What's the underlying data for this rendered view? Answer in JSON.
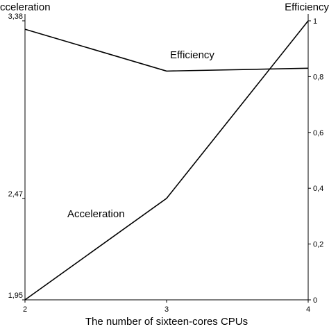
{
  "chart_data": {
    "type": "line",
    "x_axis": {
      "label": "The number of sixteen-cores CPUs",
      "ticks": [
        2,
        3,
        4
      ],
      "range": [
        2,
        4
      ]
    },
    "y_left": {
      "label": "cceleration",
      "ticks": [
        "1,95",
        "2,47",
        "3,38"
      ],
      "range": [
        1.95,
        3.38
      ]
    },
    "y_right": {
      "label": "Efficiency",
      "ticks": [
        "0",
        "0,2",
        "0,4",
        "0,6",
        "0,8",
        "1"
      ],
      "range": [
        0,
        1
      ]
    },
    "series": [
      {
        "name": "Efficiency",
        "axis": "right",
        "x": [
          2,
          3,
          4
        ],
        "y": [
          0.97,
          0.82,
          0.83
        ]
      },
      {
        "name": "Acceleration",
        "axis": "left",
        "x": [
          2,
          3,
          4
        ],
        "y": [
          1.95,
          2.47,
          3.38
        ]
      }
    ],
    "grid": false
  }
}
